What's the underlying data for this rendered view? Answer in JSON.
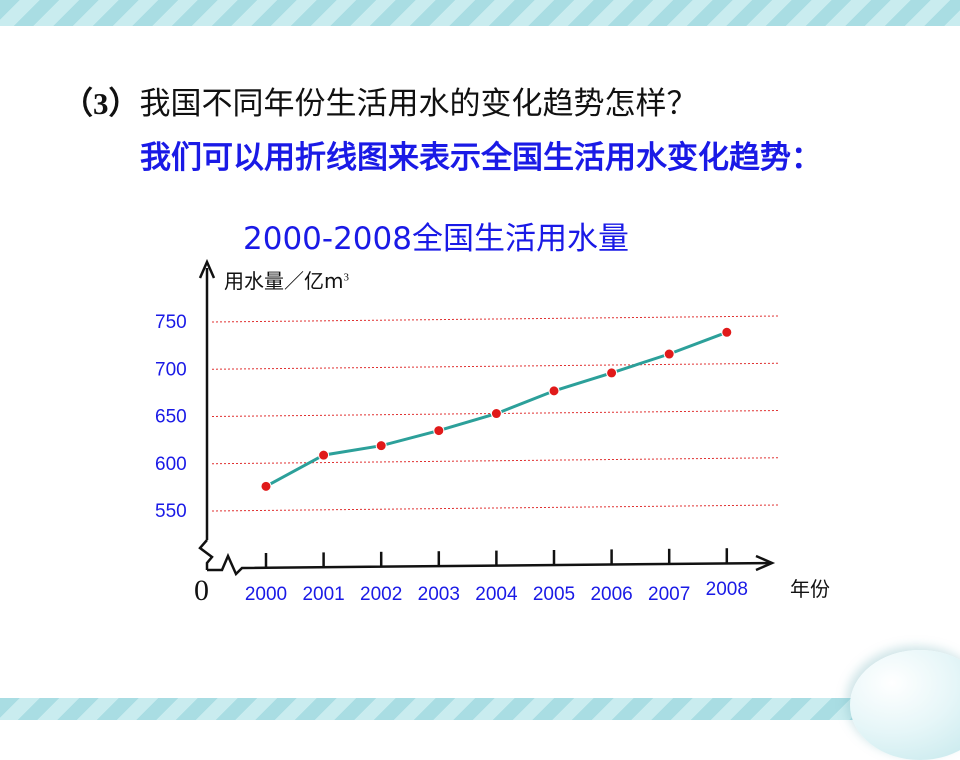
{
  "question": {
    "number": "（3）",
    "text": "我国不同年份生活用水的变化趋势怎样？"
  },
  "answer_text": "我们可以用折线图来表示全国生活用水变化趋势：",
  "chart_data": {
    "type": "line",
    "title": "2000-2008全国生活用水量",
    "ylabel": "用水量／亿m",
    "ylabel_sup": "3",
    "xlabel": "年份",
    "origin_label": "0",
    "categories": [
      "2000",
      "2001",
      "2002",
      "2003",
      "2004",
      "2005",
      "2006",
      "2007",
      "2008"
    ],
    "y_ticks": [
      550,
      600,
      650,
      700,
      750
    ],
    "ylim": [
      550,
      750
    ],
    "axis_break": true,
    "grid": true,
    "series": [
      {
        "values": [
          574,
          607,
          617,
          633,
          651,
          675,
          694,
          714,
          737
        ]
      }
    ],
    "colors": {
      "line": "#2ca09a",
      "marker": "#e01a1a",
      "grid": "#e03030",
      "tick_label": "#1a1ae6",
      "axis": "#111111"
    }
  }
}
